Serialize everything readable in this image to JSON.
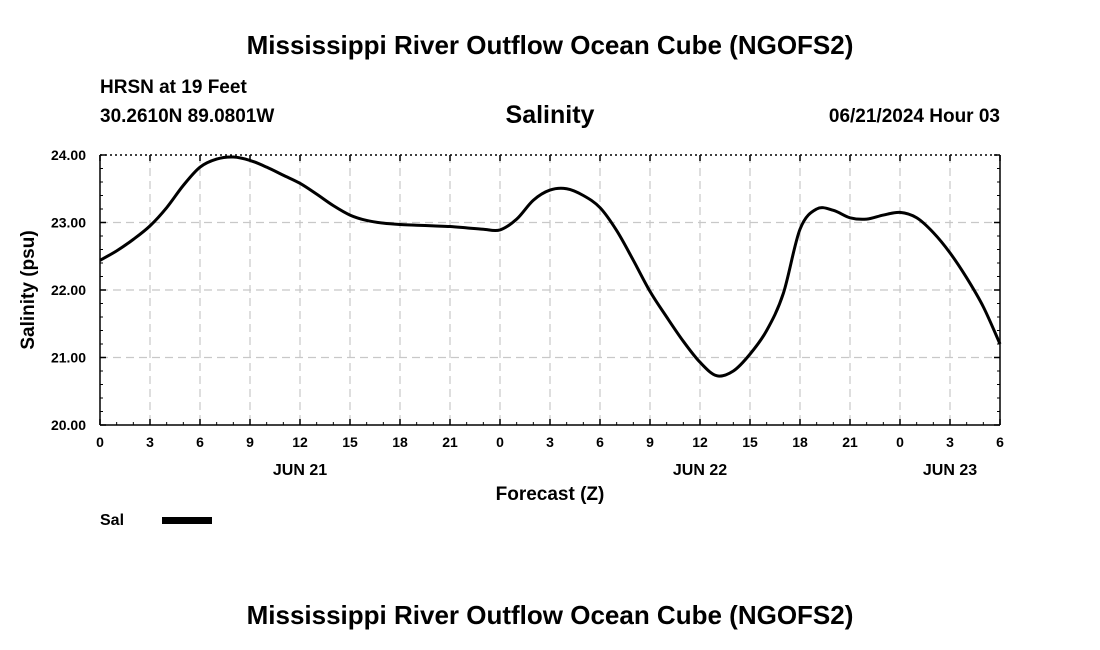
{
  "header": {
    "title_top": "Mississippi River Outflow Ocean Cube (NGOFS2)",
    "station": "HRSN at 19 Feet",
    "coords": "30.2610N  89.0801W",
    "variable": "Salinity",
    "datetime": "06/21/2024 Hour 03",
    "title_bottom": "Mississippi River Outflow Ocean Cube (NGOFS2)"
  },
  "legend": {
    "label": "Sal",
    "color": "#000000"
  },
  "chart_data": {
    "type": "line",
    "title": "Salinity",
    "xlabel": "Forecast (Z)",
    "ylabel": "Salinity (psu)",
    "xlim": [
      0,
      54
    ],
    "ylim": [
      20.0,
      24.0
    ],
    "x_tick_labels": [
      "0",
      "3",
      "6",
      "9",
      "12",
      "15",
      "18",
      "21",
      "0",
      "3",
      "6",
      "9",
      "12",
      "15",
      "18",
      "21",
      "0",
      "3",
      "6"
    ],
    "y_tick_labels": [
      "20.00",
      "21.00",
      "22.00",
      "23.00",
      "24.00"
    ],
    "y_ticks": [
      20,
      21,
      22,
      23,
      24
    ],
    "date_labels": [
      {
        "label": "JUN 21",
        "at_hour": 12
      },
      {
        "label": "JUN 22",
        "at_hour": 36
      },
      {
        "label": "JUN 23",
        "at_hour": 51
      }
    ],
    "grid": true,
    "series": [
      {
        "name": "Sal",
        "x": [
          0,
          1,
          2,
          3,
          4,
          5,
          6,
          7,
          8,
          9,
          10,
          11,
          12,
          13,
          14,
          15,
          16,
          17,
          18,
          19,
          20,
          21,
          22,
          23,
          24,
          25,
          26,
          27,
          28,
          29,
          30,
          31,
          32,
          33,
          34,
          35,
          36,
          37,
          38,
          39,
          40,
          41,
          42,
          43,
          44,
          45,
          46,
          47,
          48,
          49,
          50,
          51,
          52,
          53,
          54
        ],
        "values": [
          22.44,
          22.58,
          22.75,
          22.95,
          23.22,
          23.55,
          23.82,
          23.94,
          23.97,
          23.92,
          23.82,
          23.7,
          23.58,
          23.42,
          23.25,
          23.11,
          23.03,
          22.99,
          22.97,
          22.96,
          22.95,
          22.94,
          22.92,
          22.9,
          22.89,
          23.05,
          23.33,
          23.48,
          23.5,
          23.4,
          23.22,
          22.88,
          22.44,
          21.98,
          21.6,
          21.24,
          20.93,
          20.73,
          20.8,
          21.05,
          21.4,
          21.95,
          22.9,
          23.2,
          23.18,
          23.07,
          23.05,
          23.11,
          23.15,
          23.07,
          22.85,
          22.55,
          22.18,
          21.75,
          21.2
        ]
      }
    ]
  }
}
